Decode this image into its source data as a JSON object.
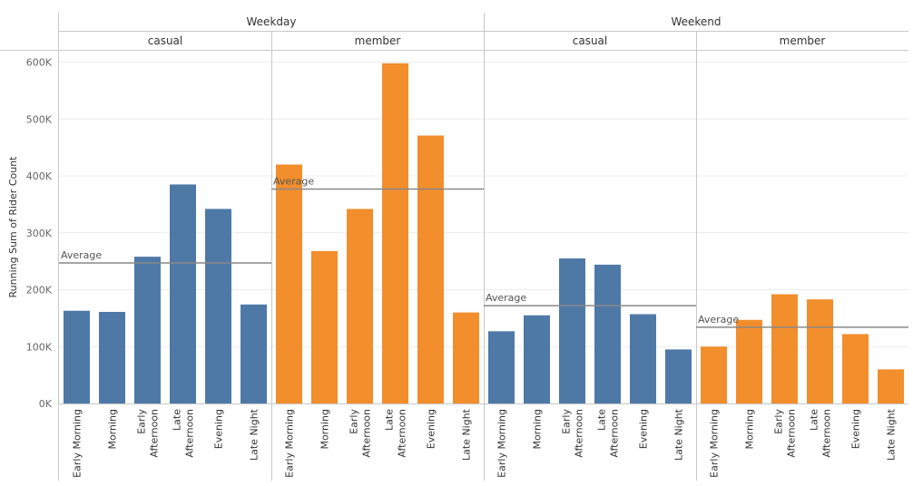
{
  "chart_data": {
    "type": "bar",
    "ylabel": "Running Sum of Rider Count",
    "ylim": [
      0,
      620000
    ],
    "yticks": [
      0,
      100000,
      200000,
      300000,
      400000,
      500000,
      600000
    ],
    "ytick_labels": [
      "0K",
      "100K",
      "200K",
      "300K",
      "400K",
      "500K",
      "600K"
    ],
    "categories": [
      "Early Morning",
      "Morning",
      "Early Afternoon",
      "Late Afternoon",
      "Evening",
      "Late Night"
    ],
    "category_label_lines": [
      [
        "Early Morning"
      ],
      [
        "Morning"
      ],
      [
        "Early",
        "Afternoon"
      ],
      [
        "Late",
        "Afternoon"
      ],
      [
        "Evening"
      ],
      [
        "Late Night"
      ]
    ],
    "average_label": "Average",
    "colors": {
      "casual": "#4e79a7",
      "member": "#f28e2b",
      "average_line": "#888888",
      "grid": "#ececec",
      "divider": "#c8c8c8"
    },
    "groups": [
      {
        "label": "Weekday",
        "panels": [
          {
            "label": "casual",
            "color_key": "casual",
            "values": [
              163000,
              161000,
              258000,
              385000,
              342000,
              174000
            ],
            "average": 247000
          },
          {
            "label": "member",
            "color_key": "member",
            "values": [
              420000,
              268000,
              342000,
              598000,
              471000,
              160000
            ],
            "average": 377000
          }
        ]
      },
      {
        "label": "Weekend",
        "panels": [
          {
            "label": "casual",
            "color_key": "casual",
            "values": [
              127000,
              155000,
              255000,
              244000,
              157000,
              95000
            ],
            "average": 172000
          },
          {
            "label": "member",
            "color_key": "member",
            "values": [
              100000,
              147000,
              192000,
              183000,
              122000,
              60000
            ],
            "average": 134000
          }
        ]
      }
    ]
  }
}
